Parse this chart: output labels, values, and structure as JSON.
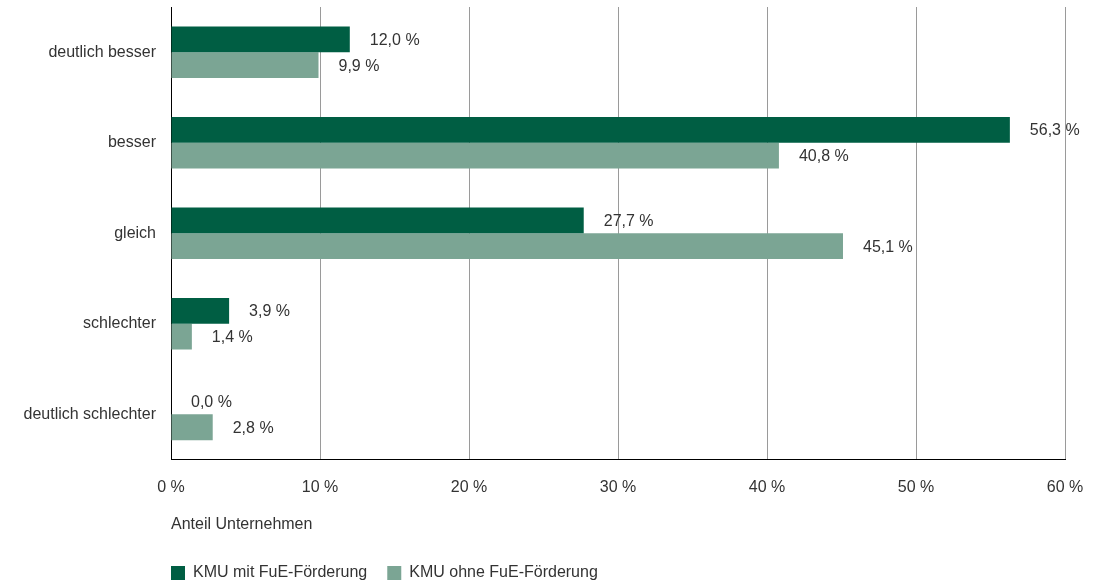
{
  "chart_data": {
    "type": "bar",
    "orientation": "horizontal",
    "categories": [
      "deutlich besser",
      "besser",
      "gleich",
      "schlechter",
      "deutlich schlechter"
    ],
    "series": [
      {
        "name": "KMU mit FuE-Förderung",
        "color": "#005e43",
        "values": [
          12.0,
          56.3,
          27.7,
          3.9,
          0.0
        ],
        "value_labels": [
          "12,0 %",
          "56,3 %",
          "27,7 %",
          "3,9 %",
          "0,0 %"
        ]
      },
      {
        "name": "KMU ohne FuE-Förderung",
        "color": "#7ba594",
        "values": [
          9.9,
          40.8,
          45.1,
          1.4,
          2.8
        ],
        "value_labels": [
          "9,9 %",
          "40,8 %",
          "45,1 %",
          "1,4 %",
          "2,8 %"
        ]
      }
    ],
    "xlabel": "Anteil Unternehmen",
    "xlim": [
      0,
      60
    ],
    "xticks": [
      {
        "value": 0,
        "label": "0 %"
      },
      {
        "value": 10,
        "label": "10 %"
      },
      {
        "value": 20,
        "label": "20 %"
      },
      {
        "value": 30,
        "label": "30 %"
      },
      {
        "value": 40,
        "label": "40 %"
      },
      {
        "value": 50,
        "label": "50 %"
      },
      {
        "value": 60,
        "label": "60 %"
      }
    ],
    "grid": "x",
    "legend": "bottom left"
  }
}
